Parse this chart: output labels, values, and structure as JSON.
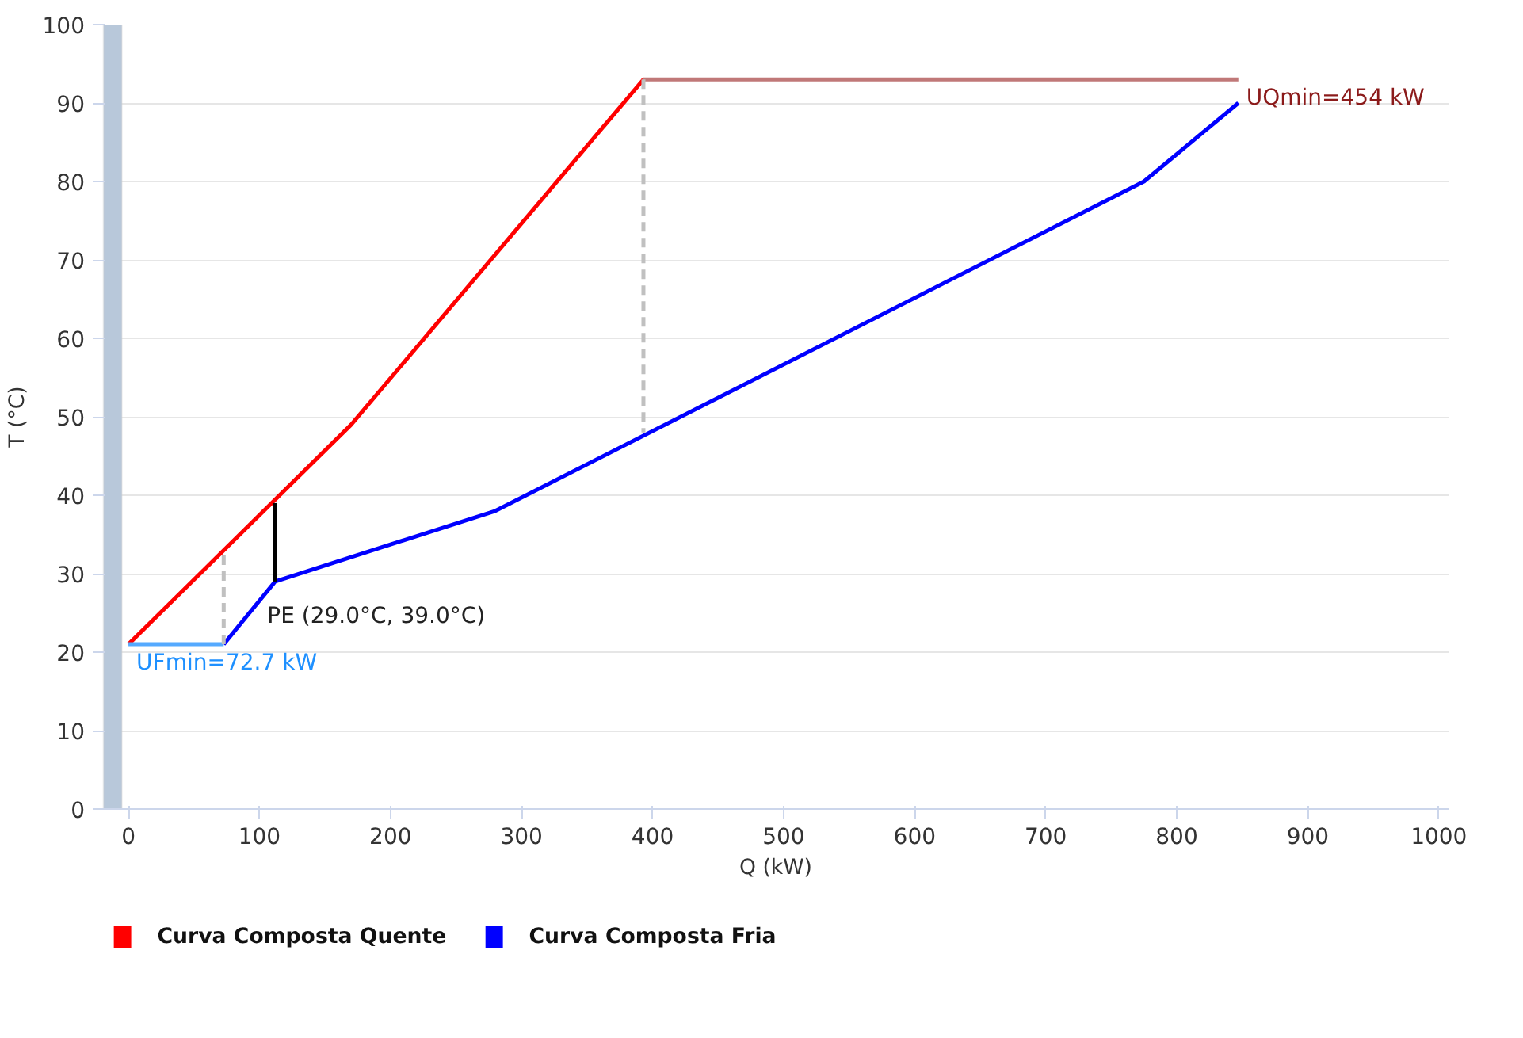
{
  "chart_data": {
    "type": "line",
    "xlabel": "Q (kW)",
    "ylabel": "T (°C)",
    "xlim": [
      -20,
      1008
    ],
    "ylim": [
      0,
      100
    ],
    "xticks": [
      0,
      100,
      200,
      300,
      400,
      500,
      600,
      700,
      800,
      900,
      1000
    ],
    "yticks": [
      0,
      10,
      20,
      30,
      40,
      50,
      60,
      70,
      80,
      90,
      100
    ],
    "grid": "y",
    "legend": "bottom left",
    "marker": "none",
    "line_style": "solid",
    "series": [
      {
        "name": "Curva Composta Quente",
        "color": "#ff0000",
        "x": [
          0,
          170,
          393
        ],
        "values": [
          21,
          49,
          93
        ]
      },
      {
        "name": "Curva Composta Fria",
        "color": "#0000ff",
        "x": [
          72.7,
          112,
          280,
          775,
          847
        ],
        "values": [
          21,
          29,
          38,
          80,
          90
        ]
      },
      {
        "color": "#c07878",
        "x": [
          393,
          847
        ],
        "values": [
          93,
          93
        ]
      },
      {
        "color": "#55aaff",
        "x": [
          0,
          72.7
        ],
        "values": [
          21,
          21
        ]
      },
      {
        "color": "#c0c0c0",
        "line_style": "dashed",
        "x": [
          393,
          393
        ],
        "values": [
          93,
          48
        ]
      },
      {
        "color": "#c0c0c0",
        "line_style": "dashed",
        "x": [
          72.7,
          72.7
        ],
        "values": [
          21,
          33
        ]
      },
      {
        "color": "#000000",
        "x": [
          112,
          112
        ],
        "values": [
          29,
          39
        ]
      }
    ],
    "bands": [
      {
        "axis": "x",
        "from": -19,
        "to": -5,
        "color": "#b8c8da"
      }
    ],
    "annotations": [
      {
        "text": "UQmin=454 kW",
        "x": 847,
        "y": 93
      },
      {
        "text": "UFmin=72.7 kW",
        "x": 0,
        "y": 21
      },
      {
        "text": "PE (29.0°C, 39.0°C)",
        "x": 112,
        "y": 29
      }
    ]
  }
}
